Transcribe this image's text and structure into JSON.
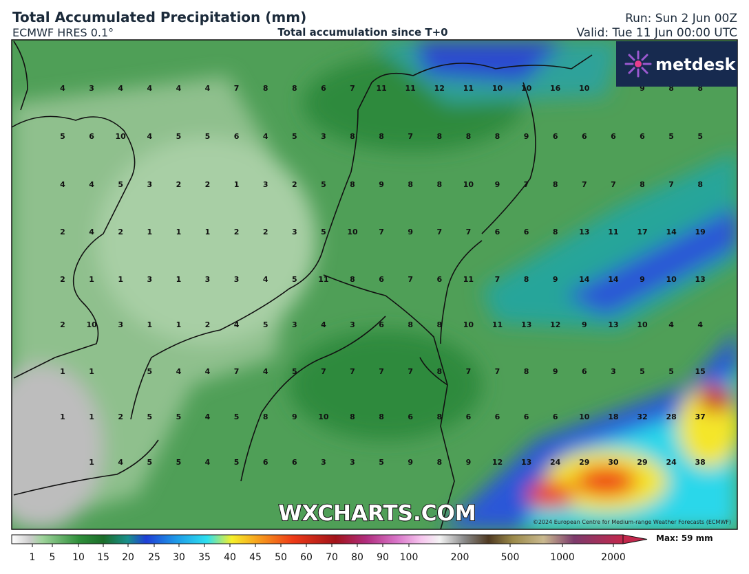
{
  "header": {
    "title": "Total Accumulated Precipitation (mm)",
    "model": "ECMWF HRES 0.1°",
    "subtitle": "Total accumulation since T+0",
    "run": "Run: Sun 2 Jun 00Z",
    "valid": "Valid: Tue 11 Jun 00:00 UTC"
  },
  "logo": "metdesk",
  "watermark": "WXCHARTS.COM",
  "copyright": "©2024 European Centre for Medium-range Weather Forecasts (ECMWF)",
  "grid": {
    "rows": [
      [
        4,
        3,
        4,
        4,
        4,
        4,
        7,
        8,
        8,
        6,
        7,
        11,
        11,
        12,
        11,
        10,
        10,
        16,
        10,
        null,
        9,
        8,
        8
      ],
      [
        5,
        6,
        10,
        4,
        5,
        5,
        6,
        4,
        5,
        3,
        8,
        8,
        7,
        8,
        8,
        8,
        9,
        6,
        6,
        6,
        6,
        5,
        5
      ],
      [
        4,
        4,
        5,
        3,
        2,
        2,
        1,
        3,
        2,
        5,
        8,
        9,
        8,
        8,
        10,
        9,
        7,
        8,
        7,
        7,
        8,
        7,
        8
      ],
      [
        2,
        4,
        2,
        1,
        1,
        1,
        2,
        2,
        3,
        5,
        10,
        7,
        9,
        7,
        7,
        6,
        6,
        8,
        13,
        11,
        17,
        14,
        19
      ],
      [
        2,
        1,
        1,
        3,
        1,
        3,
        3,
        4,
        5,
        11,
        8,
        6,
        7,
        6,
        11,
        7,
        8,
        9,
        14,
        14,
        9,
        10,
        13
      ],
      [
        2,
        10,
        3,
        1,
        1,
        2,
        4,
        5,
        3,
        4,
        3,
        6,
        8,
        8,
        10,
        11,
        13,
        12,
        9,
        13,
        10,
        4,
        4
      ],
      [
        1,
        1,
        null,
        5,
        4,
        4,
        7,
        4,
        5,
        7,
        7,
        7,
        7,
        8,
        7,
        7,
        8,
        9,
        6,
        3,
        5,
        5,
        15
      ],
      [
        1,
        1,
        2,
        5,
        5,
        4,
        5,
        8,
        9,
        10,
        8,
        8,
        6,
        8,
        6,
        6,
        6,
        6,
        10,
        18,
        32,
        28,
        37
      ],
      [
        null,
        1,
        4,
        5,
        5,
        4,
        5,
        6,
        6,
        3,
        3,
        5,
        9,
        8,
        9,
        12,
        13,
        24,
        29,
        30,
        29,
        24,
        38
      ]
    ]
  },
  "legend": {
    "ticks": [
      1,
      5,
      10,
      15,
      20,
      25,
      30,
      35,
      40,
      45,
      50,
      60,
      70,
      80,
      90,
      100,
      200,
      500,
      1000,
      2000
    ],
    "max_label": "Max: 59 mm"
  }
}
